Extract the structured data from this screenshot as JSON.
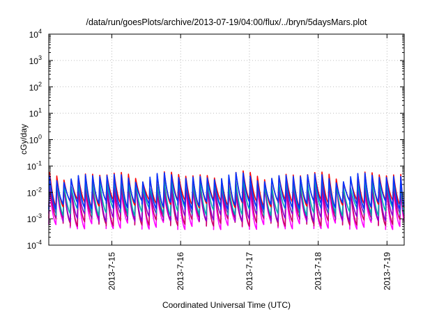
{
  "chart_data": {
    "type": "line",
    "title": "/data/run/goesPlots/archive/2013-07-19/04:00/flux/../bryn/5daysMars.plot",
    "xlabel": "Coordinated Universal Time (UTC)",
    "ylabel": "cGy/day",
    "y_scale": "log",
    "ylim": [
      0.0001,
      10000
    ],
    "x_range": [
      "2013-07-14T02:00",
      "2013-07-19T06:00"
    ],
    "x_ticks": [
      "2013-7-15",
      "2013-7-16",
      "2013-7-17",
      "2013-7-18",
      "2013-7-19"
    ],
    "y_ticks": [
      {
        "base": "10",
        "exp": "-4"
      },
      {
        "base": "10",
        "exp": "-3"
      },
      {
        "base": "10",
        "exp": "-2"
      },
      {
        "base": "10",
        "exp": "-1"
      },
      {
        "base": "10",
        "exp": "0"
      },
      {
        "base": "10",
        "exp": "1"
      },
      {
        "base": "10",
        "exp": "2"
      },
      {
        "base": "10",
        "exp": "3"
      },
      {
        "base": "10",
        "exp": "4"
      }
    ],
    "grid": true,
    "cycle_hours": 2.5,
    "series": [
      {
        "color": "#ff00ff",
        "peak": 0.012,
        "trough": 0.0006
      },
      {
        "color": "#cc0066",
        "peak": 0.015,
        "trough": 0.0008
      },
      {
        "color": "#8800cc",
        "peak": 0.02,
        "trough": 0.0012
      },
      {
        "color": "#00aaaa",
        "peak": 0.025,
        "trough": 0.002
      },
      {
        "color": "#ff0000",
        "peak": 0.045,
        "trough": 0.004
      },
      {
        "color": "#0033ff",
        "peak": 0.04,
        "trough": 0.0035
      }
    ]
  }
}
